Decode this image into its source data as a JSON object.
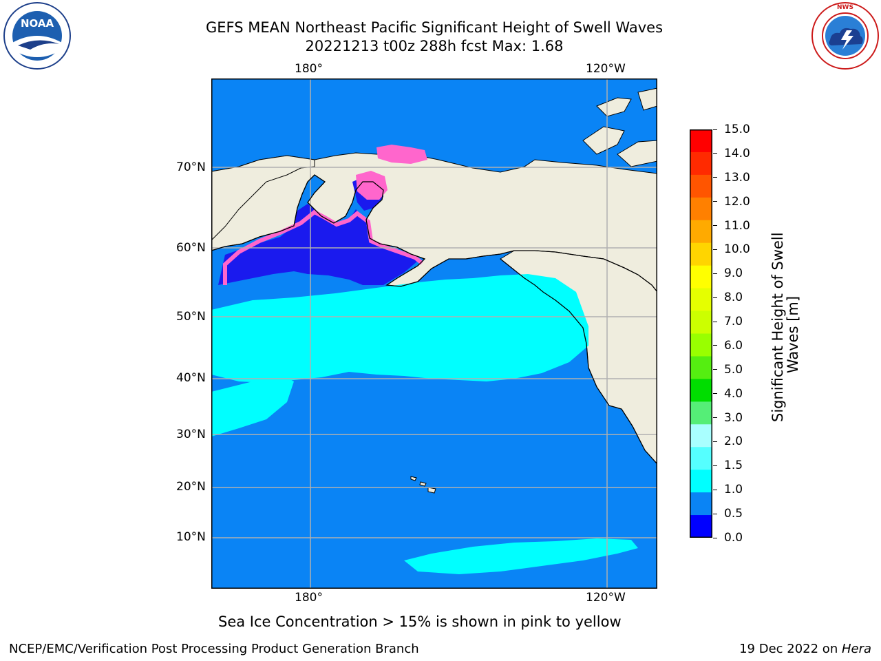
{
  "header": {
    "title_line1": "GEFS MEAN Northeast Pacific Significant Height of Swell Waves",
    "title_line2": "20221213 t00z 288h fcst   Max: 1.68"
  },
  "logos": {
    "left": {
      "name": "noaa-logo",
      "text": "NOAA",
      "ring_text": "NATIONAL OCEANIC AND ATMOSPHERIC ADMINISTRATION · U.S. DEPARTMENT OF COMMERCE"
    },
    "right": {
      "name": "nws-logo",
      "ring_text": "NATIONAL WEATHER SERVICE"
    }
  },
  "map": {
    "lon_labels_top": [
      "180°",
      "120°W"
    ],
    "lon_labels_bottom": [
      "180°",
      "120°W"
    ],
    "lat_labels": [
      "70°N",
      "60°N",
      "50°N",
      "40°N",
      "30°N",
      "20°N",
      "10°N"
    ],
    "colors": {
      "land": "#efedde",
      "ocean_low": "#0a84f5",
      "ocean_swell": "#00ffff",
      "ice_edge": "#ff66cc",
      "calm": "#1a1aee",
      "grid": "#b0b0b0"
    }
  },
  "colorbar": {
    "label": "Significant Height of Swell Waves [m]",
    "label_line1": "Significant Height of Swell",
    "label_line2": "Waves [m]",
    "ticks": [
      "15.0",
      "14.0",
      "13.0",
      "12.0",
      "11.0",
      "10.0",
      "9.0",
      "8.0",
      "7.0",
      "6.0",
      "5.0",
      "4.0",
      "3.0",
      "2.0",
      "1.5",
      "1.0",
      "0.5",
      "0.0"
    ],
    "colors_top_to_bottom": [
      "#ff0000",
      "#ff2a00",
      "#ff5500",
      "#ff8000",
      "#ffaa00",
      "#ffd500",
      "#ffff00",
      "#e5ff00",
      "#ccff00",
      "#99ff00",
      "#55ee11",
      "#00dd00",
      "#55ee77",
      "#a9ffff",
      "#55ffff",
      "#00ffff",
      "#0a84f5",
      "#0000ff"
    ]
  },
  "note": "Sea Ice Concentration > 15% is shown in pink to yellow",
  "footer": {
    "left": "NCEP/EMC/Verification Post Processing Product Generation Branch",
    "date": "19 Dec 2022 on ",
    "host": "Hera"
  }
}
